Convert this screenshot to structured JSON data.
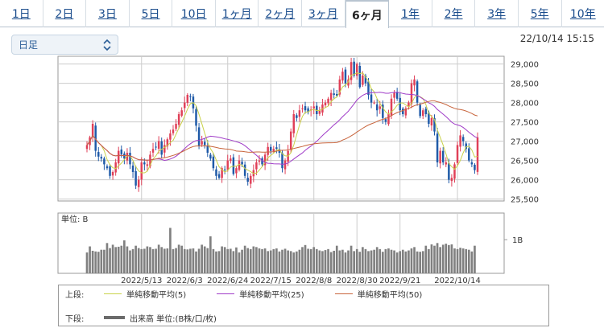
{
  "tabs": [
    "1日",
    "2日",
    "3日",
    "5日",
    "10日",
    "1ヶ月",
    "2ヶ月",
    "3ヶ月",
    "6ヶ月",
    "1年",
    "2年",
    "3年",
    "5年",
    "10年"
  ],
  "active_tab": 8,
  "select": {
    "value": "日足"
  },
  "timestamp": "22/10/14 15:15",
  "legend": {
    "upper_label": "上段:",
    "lower_label": "下段:",
    "items": [
      {
        "label": "単純移動平均(5)",
        "color": "#c9d24a"
      },
      {
        "label": "単純移動平均(25)",
        "color": "#a03cc8"
      },
      {
        "label": "単純移動平均(50)",
        "color": "#c8643c"
      }
    ],
    "volume_label": "出来高 単位:(B株/口/枚)"
  },
  "volume_panel": {
    "unit_label": "単位: B",
    "tick_label": "1B"
  },
  "colors": {
    "up": "#e04058",
    "down": "#1f5aa8",
    "volume": "#808080",
    "grid": "#cccccc"
  },
  "chart_data": [
    {
      "type": "candlestick",
      "title": "",
      "x_tick_labels": [
        "2022/5/13",
        "2022/6/3",
        "2022/6/24",
        "2022/7/15",
        "2022/8/8",
        "2022/8/30",
        "2022/9/21",
        "2022/10/14"
      ],
      "y_ticks": [
        25500,
        26000,
        26500,
        27000,
        27500,
        28000,
        28500,
        29000
      ],
      "ylim": [
        25450,
        29200
      ],
      "grid": true,
      "close": [
        26900,
        27100,
        27450,
        26750,
        26600,
        26550,
        26400,
        26300,
        26100,
        26200,
        26450,
        26750,
        26660,
        26550,
        26700,
        26400,
        26200,
        25850,
        26000,
        26450,
        26400,
        26400,
        26650,
        26800,
        26850,
        27000,
        26650,
        26900,
        27050,
        27200,
        27300,
        27450,
        27700,
        27800,
        28000,
        28200,
        28150,
        27850,
        27400,
        26880,
        27000,
        26900,
        26700,
        26550,
        26300,
        26100,
        26050,
        26300,
        26250,
        26500,
        26550,
        26150,
        26300,
        26500,
        26400,
        26100,
        25950,
        26100,
        26250,
        26450,
        26500,
        26400,
        26650,
        26850,
        26750,
        26800,
        26800,
        26700,
        26300,
        26500,
        26750,
        27250,
        27700,
        27600,
        27800,
        27850,
        27800,
        27750,
        27820,
        27900,
        27700,
        27800,
        27950,
        28000,
        28100,
        28250,
        28200,
        28180,
        28600,
        28800,
        28500,
        28600,
        29050,
        28700,
        29000,
        28400,
        28700,
        28500,
        28200,
        28000,
        28000,
        27800,
        27900,
        27600,
        27500,
        27700,
        28100,
        28250,
        28100,
        27800,
        27700,
        27850,
        28000,
        28500,
        28600,
        28000,
        27650,
        27800,
        27700,
        27450,
        27600,
        27250,
        26450,
        26750,
        26450,
        26450,
        26000,
        26050,
        26400,
        26900,
        27150,
        27000,
        26800,
        26500,
        26400,
        26250,
        27100
      ]
    },
    {
      "type": "bar",
      "title": "出来高",
      "ylabel": "単位: B",
      "values_b": [
        0.62,
        0.8,
        0.67,
        0.65,
        0.64,
        0.7,
        0.7,
        0.9,
        0.75,
        0.85,
        0.78,
        0.79,
        0.82,
        0.98,
        0.8,
        0.68,
        0.72,
        0.82,
        0.75,
        0.72,
        0.73,
        0.8,
        0.78,
        0.72,
        0.73,
        0.85,
        0.78,
        0.73,
        0.74,
        1.35,
        0.72,
        0.75,
        0.85,
        0.82,
        0.72,
        0.71,
        0.73,
        0.74,
        0.65,
        0.73,
        0.85,
        0.8,
        0.75,
        1.1,
        0.72,
        0.65,
        0.66,
        0.8,
        0.78,
        0.72,
        0.73,
        0.66,
        0.77,
        0.62,
        0.7,
        0.82,
        0.75,
        0.72,
        0.8,
        0.78,
        0.74,
        0.72,
        0.74,
        0.66,
        0.68,
        0.72,
        0.74,
        0.65,
        0.7,
        0.73,
        0.68,
        0.66,
        0.62,
        0.65,
        0.7,
        0.78,
        0.84,
        0.73,
        0.72,
        0.78,
        0.72,
        0.68,
        0.66,
        0.69,
        0.72,
        0.63,
        0.67,
        0.82,
        0.68,
        0.7,
        0.62,
        0.68,
        0.82,
        0.66,
        0.72,
        0.64,
        0.78,
        0.72,
        0.66,
        0.68,
        0.7,
        0.78,
        0.72,
        0.64,
        0.72,
        0.74,
        0.7,
        0.68,
        0.62,
        0.66,
        0.7,
        0.65,
        0.68,
        0.74,
        0.78,
        0.65,
        0.64,
        0.66,
        0.82,
        0.72,
        0.86,
        0.82,
        0.9,
        0.78,
        0.85,
        0.88,
        0.84,
        0.86,
        0.74,
        0.72,
        0.76,
        0.74,
        0.72,
        0.7,
        0.65,
        0.82
      ],
      "ylim": [
        0,
        1.6
      ]
    }
  ]
}
